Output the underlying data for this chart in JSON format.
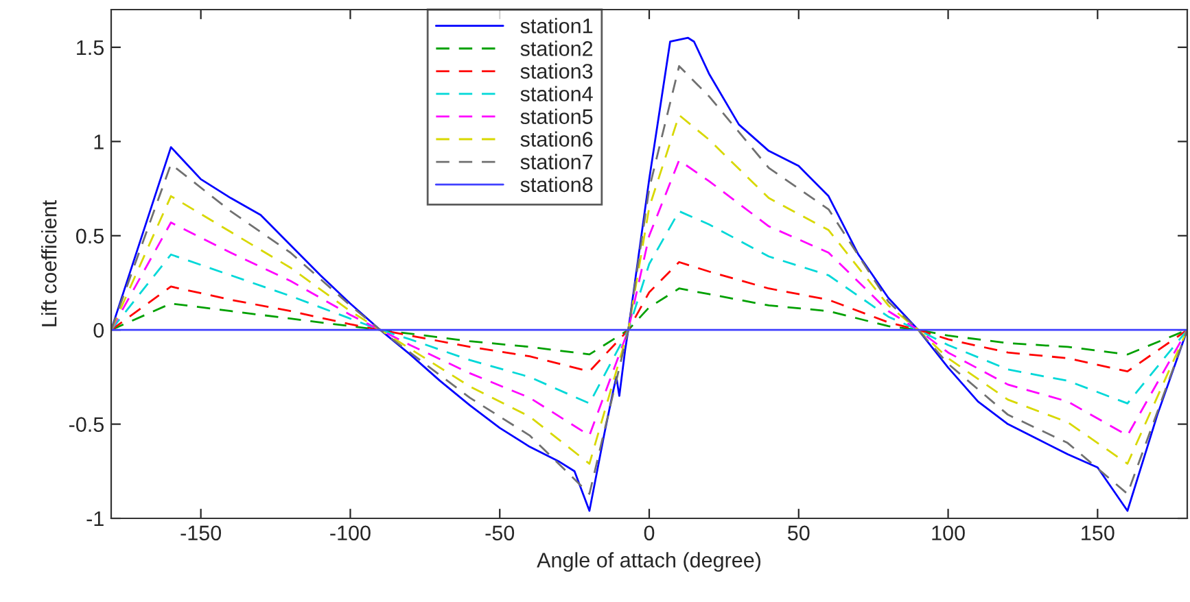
{
  "chart_data": {
    "type": "line",
    "xlabel": "Angle of attach (degree)",
    "ylabel": "Lift coefficient",
    "xlim": [
      -180,
      180
    ],
    "ylim": [
      -1,
      1.7
    ],
    "xticks": [
      -150,
      -100,
      -50,
      0,
      50,
      100,
      150
    ],
    "yticks": [
      -1,
      -0.5,
      0,
      0.5,
      1,
      1.5
    ],
    "grid": false,
    "legend": "top",
    "marker": "none",
    "series": [
      {
        "name": "station1",
        "color": "#0000ff",
        "line_style": "solid",
        "x": [
          -180,
          -160,
          -150,
          -140,
          -130,
          -120,
          -110,
          -100,
          -90,
          -80,
          -70,
          -60,
          -50,
          -40,
          -30,
          -25,
          -20,
          -15,
          -12,
          -11,
          -10,
          -8,
          -7,
          0,
          7,
          13,
          15,
          20,
          30,
          40,
          50,
          60,
          70,
          80,
          90,
          100,
          110,
          120,
          130,
          140,
          150,
          160,
          170,
          180
        ],
        "values": [
          0,
          0.97,
          0.8,
          0.7,
          0.61,
          0.45,
          0.29,
          0.14,
          0,
          -0.13,
          -0.27,
          -0.4,
          -0.52,
          -0.62,
          -0.7,
          -0.75,
          -0.96,
          -0.55,
          -0.32,
          -0.25,
          -0.35,
          -0.1,
          0,
          0.8,
          1.53,
          1.55,
          1.53,
          1.36,
          1.09,
          0.95,
          0.87,
          0.71,
          0.4,
          0.17,
          0,
          -0.2,
          -0.38,
          -0.5,
          -0.58,
          -0.66,
          -0.73,
          -0.96,
          -0.45,
          0
        ]
      },
      {
        "name": "station2",
        "color": "#00a000",
        "line_style": "dashed",
        "x": [
          -180,
          -160,
          -140,
          -120,
          -100,
          -90,
          -80,
          -60,
          -40,
          -20,
          -7,
          0,
          10,
          20,
          40,
          60,
          80,
          90,
          100,
          120,
          140,
          160,
          180
        ],
        "values": [
          0,
          0.14,
          0.1,
          0.06,
          0.02,
          0,
          -0.02,
          -0.06,
          -0.09,
          -0.13,
          0,
          0.12,
          0.22,
          0.19,
          0.13,
          0.1,
          0.02,
          0,
          -0.03,
          -0.07,
          -0.09,
          -0.13,
          0
        ]
      },
      {
        "name": "station3",
        "color": "#ff0000",
        "line_style": "dashed",
        "x": [
          -180,
          -160,
          -140,
          -120,
          -100,
          -90,
          -80,
          -60,
          -40,
          -20,
          -7,
          0,
          10,
          20,
          40,
          60,
          80,
          90,
          100,
          120,
          140,
          160,
          180
        ],
        "values": [
          0,
          0.23,
          0.16,
          0.1,
          0.03,
          0,
          -0.03,
          -0.09,
          -0.14,
          -0.22,
          0,
          0.2,
          0.36,
          0.31,
          0.22,
          0.16,
          0.04,
          0,
          -0.05,
          -0.12,
          -0.15,
          -0.22,
          0
        ]
      },
      {
        "name": "station4",
        "color": "#00d8d8",
        "line_style": "dashed",
        "x": [
          -180,
          -160,
          -140,
          -120,
          -100,
          -90,
          -80,
          -60,
          -40,
          -20,
          -7,
          0,
          10,
          20,
          40,
          60,
          80,
          90,
          100,
          120,
          140,
          160,
          180
        ],
        "values": [
          0,
          0.4,
          0.29,
          0.18,
          0.06,
          0,
          -0.05,
          -0.16,
          -0.25,
          -0.39,
          0,
          0.35,
          0.63,
          0.56,
          0.39,
          0.29,
          0.07,
          0,
          -0.08,
          -0.21,
          -0.27,
          -0.39,
          0
        ]
      },
      {
        "name": "station5",
        "color": "#ff00ff",
        "line_style": "dashed",
        "x": [
          -180,
          -160,
          -140,
          -120,
          -100,
          -90,
          -80,
          -60,
          -40,
          -20,
          -7,
          0,
          10,
          20,
          40,
          60,
          80,
          90,
          100,
          120,
          140,
          160,
          180
        ],
        "values": [
          0,
          0.57,
          0.41,
          0.26,
          0.08,
          0,
          -0.08,
          -0.23,
          -0.36,
          -0.56,
          0,
          0.5,
          0.9,
          0.79,
          0.55,
          0.41,
          0.1,
          0,
          -0.12,
          -0.29,
          -0.38,
          -0.56,
          0
        ]
      },
      {
        "name": "station6",
        "color": "#d8d800",
        "line_style": "dashed",
        "x": [
          -180,
          -160,
          -140,
          -120,
          -100,
          -90,
          -80,
          -60,
          -40,
          -20,
          -7,
          0,
          10,
          20,
          40,
          60,
          80,
          90,
          100,
          120,
          140,
          160,
          180
        ],
        "values": [
          0,
          0.71,
          0.52,
          0.33,
          0.1,
          0,
          -0.1,
          -0.3,
          -0.46,
          -0.71,
          0,
          0.65,
          1.14,
          1.01,
          0.7,
          0.53,
          0.13,
          0,
          -0.15,
          -0.37,
          -0.49,
          -0.71,
          0
        ]
      },
      {
        "name": "station7",
        "color": "#707070",
        "line_style": "dashed",
        "x": [
          -180,
          -160,
          -140,
          -120,
          -100,
          -90,
          -80,
          -60,
          -40,
          -20,
          -7,
          0,
          10,
          20,
          40,
          60,
          80,
          90,
          100,
          120,
          140,
          160,
          180
        ],
        "values": [
          0,
          0.88,
          0.63,
          0.41,
          0.13,
          0,
          -0.12,
          -0.36,
          -0.56,
          -0.87,
          0,
          0.75,
          1.4,
          1.24,
          0.86,
          0.64,
          0.15,
          0,
          -0.18,
          -0.45,
          -0.6,
          -0.87,
          0
        ]
      },
      {
        "name": "station8",
        "color": "#4040ff",
        "line_style": "solid",
        "x": [
          -180,
          180
        ],
        "values": [
          0,
          0
        ]
      }
    ]
  }
}
